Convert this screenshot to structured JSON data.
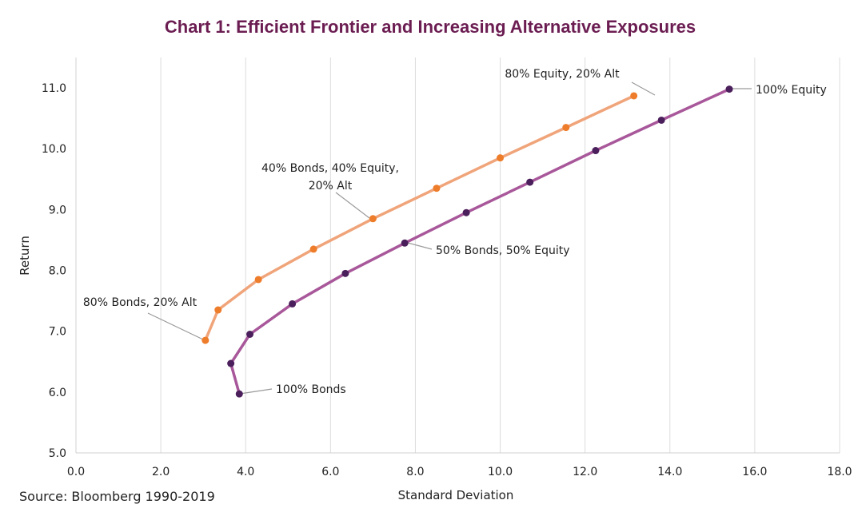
{
  "chart_data": {
    "type": "line",
    "title": "Chart 1: Efficient Frontier and Increasing Alternative Exposures",
    "xlabel": "Standard Deviation",
    "ylabel": "Return",
    "xlim": [
      0,
      18
    ],
    "ylim": [
      5,
      11.5
    ],
    "xticks": [
      "0.0",
      "2.0",
      "4.0",
      "6.0",
      "8.0",
      "10.0",
      "12.0",
      "14.0",
      "16.0",
      "18.0"
    ],
    "yticks": [
      "5.0",
      "6.0",
      "7.0",
      "8.0",
      "9.0",
      "10.0",
      "11.0"
    ],
    "grid": "vertical",
    "series": [
      {
        "color": "#f0a47a",
        "marker_color": "#ee7d2b",
        "points": [
          {
            "x": 3.05,
            "y": 6.85
          },
          {
            "x": 3.35,
            "y": 7.35
          },
          {
            "x": 4.3,
            "y": 7.85
          },
          {
            "x": 5.6,
            "y": 8.35
          },
          {
            "x": 7.0,
            "y": 8.85
          },
          {
            "x": 8.5,
            "y": 9.35
          },
          {
            "x": 10.0,
            "y": 9.85
          },
          {
            "x": 11.55,
            "y": 10.35
          },
          {
            "x": 13.15,
            "y": 10.87
          }
        ]
      },
      {
        "color": "#a8589a",
        "marker_color": "#4b1f5b",
        "points": [
          {
            "x": 3.85,
            "y": 5.97
          },
          {
            "x": 3.65,
            "y": 6.47
          },
          {
            "x": 4.1,
            "y": 6.95
          },
          {
            "x": 5.1,
            "y": 7.45
          },
          {
            "x": 6.35,
            "y": 7.95
          },
          {
            "x": 7.75,
            "y": 8.45
          },
          {
            "x": 9.2,
            "y": 8.95
          },
          {
            "x": 10.7,
            "y": 9.45
          },
          {
            "x": 12.25,
            "y": 9.97
          },
          {
            "x": 13.8,
            "y": 10.47
          },
          {
            "x": 15.4,
            "y": 10.98
          }
        ]
      }
    ],
    "annotations": [
      {
        "lines": [
          "80% Equity, 20% Alt"
        ],
        "x": 13.15,
        "y": 10.87
      },
      {
        "lines": [
          "100% Equity"
        ],
        "x": 15.4,
        "y": 10.98
      },
      {
        "lines": [
          "40% Bonds, 40% Equity,",
          "20% Alt"
        ],
        "x": 7.0,
        "y": 8.85
      },
      {
        "lines": [
          "50% Bonds, 50% Equity"
        ],
        "x": 7.75,
        "y": 8.45
      },
      {
        "lines": [
          "80% Bonds, 20% Alt"
        ],
        "x": 3.05,
        "y": 6.85
      },
      {
        "lines": [
          "100% Bonds"
        ],
        "x": 3.85,
        "y": 5.97
      }
    ]
  },
  "source": "Source: Bloomberg 1990-2019"
}
